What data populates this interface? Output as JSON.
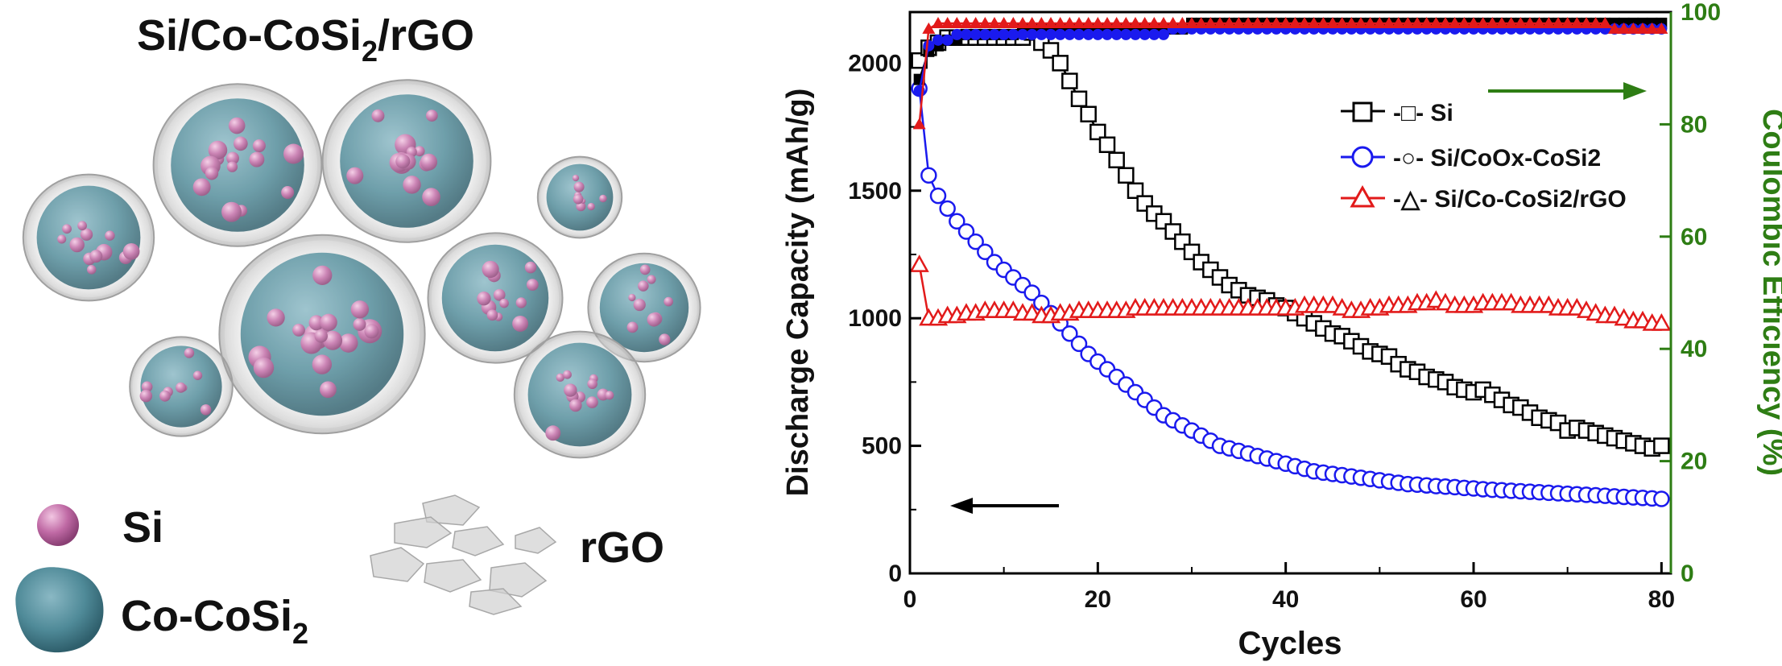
{
  "schematic": {
    "title_main": "Si/Co-CoSi",
    "title_sub": "2",
    "title_tail": "/rGO",
    "legend_si": "Si",
    "legend_cocosi_main": "Co-CoSi",
    "legend_cocosi_sub": "2",
    "legend_rgo": "rGO",
    "colors": {
      "si": "#c06aa5",
      "core": "#4f8a98",
      "shell": "#bdbdbd"
    }
  },
  "chart_data": {
    "type": "line",
    "xlabel": "Cycles",
    "ylabel": "Discharge Capacity (mAh/g)",
    "y2label": "Coulombic Efficiency (%)",
    "xlim": [
      0,
      81
    ],
    "ylim": [
      0,
      2200
    ],
    "y2lim": [
      0,
      100
    ],
    "xticks": [
      "0",
      "20",
      "40",
      "60",
      "80"
    ],
    "yticks": [
      "0",
      "500",
      "1000",
      "1500",
      "2000"
    ],
    "y2ticks": [
      "0",
      "20",
      "40",
      "60",
      "80",
      "100"
    ],
    "legend_position": "upper-right",
    "legend": [
      {
        "prefix": "-",
        "suffix": "- Si",
        "main": "",
        "sub": "",
        "tail": ""
      },
      {
        "prefix": "-",
        "suffix": "- Si/CoO",
        "main": "x",
        "sub": "",
        "tail": "-CoSi2"
      },
      {
        "prefix": "-",
        "suffix": "- Si/Co-CoSi2/rGO",
        "main": "",
        "sub": "",
        "tail": ""
      }
    ],
    "legend_text": [
      "-□- Si",
      "-○- Si/CoOx-CoSi2",
      "-△- Si/Co-CoSi2/rGO"
    ],
    "colors": {
      "si": "#000000",
      "coox": "#1a1aee",
      "rgo": "#e21a1a",
      "axis_right": "#2e7d14"
    },
    "series": [
      {
        "name": "Si",
        "axis": "left",
        "marker": "square",
        "x": [
          1,
          2,
          3,
          4,
          5,
          6,
          7,
          8,
          9,
          10,
          11,
          12,
          13,
          14,
          15,
          16,
          17,
          18,
          19,
          20,
          21,
          22,
          23,
          24,
          25,
          26,
          27,
          28,
          29,
          30,
          31,
          32,
          33,
          34,
          35,
          36,
          37,
          38,
          39,
          40,
          41,
          42,
          43,
          44,
          45,
          46,
          47,
          48,
          49,
          50,
          51,
          52,
          53,
          54,
          55,
          56,
          57,
          58,
          59,
          60,
          61,
          62,
          63,
          64,
          65,
          66,
          67,
          68,
          69,
          70,
          71,
          72,
          73,
          74,
          75,
          76,
          77,
          78,
          79,
          80
        ],
        "values": [
          2010,
          2060,
          2080,
          2100,
          2100,
          2100,
          2100,
          2100,
          2100,
          2100,
          2100,
          2100,
          2120,
          2080,
          2050,
          2000,
          1930,
          1860,
          1800,
          1730,
          1680,
          1620,
          1560,
          1500,
          1450,
          1410,
          1380,
          1340,
          1300,
          1260,
          1220,
          1190,
          1160,
          1130,
          1110,
          1090,
          1080,
          1070,
          1050,
          1040,
          1020,
          1000,
          980,
          960,
          940,
          930,
          910,
          890,
          870,
          860,
          850,
          820,
          800,
          790,
          770,
          760,
          750,
          730,
          720,
          710,
          720,
          700,
          680,
          660,
          650,
          630,
          610,
          600,
          590,
          560,
          570,
          560,
          550,
          540,
          530,
          520,
          510,
          500,
          490,
          500
        ]
      },
      {
        "name": "Si/CoOx-CoSi2",
        "axis": "left",
        "marker": "circle",
        "x": [
          1,
          2,
          3,
          4,
          5,
          6,
          7,
          8,
          9,
          10,
          11,
          12,
          13,
          14,
          15,
          16,
          17,
          18,
          19,
          20,
          21,
          22,
          23,
          24,
          25,
          26,
          27,
          28,
          29,
          30,
          31,
          32,
          33,
          34,
          35,
          36,
          37,
          38,
          39,
          40,
          41,
          42,
          43,
          44,
          45,
          46,
          47,
          48,
          49,
          50,
          51,
          52,
          53,
          54,
          55,
          56,
          57,
          58,
          59,
          60,
          61,
          62,
          63,
          64,
          65,
          66,
          67,
          68,
          69,
          70,
          71,
          72,
          73,
          74,
          75,
          76,
          77,
          78,
          79,
          80
        ],
        "values": [
          1900,
          1560,
          1480,
          1430,
          1380,
          1340,
          1300,
          1260,
          1220,
          1190,
          1160,
          1130,
          1100,
          1060,
          1020,
          980,
          940,
          900,
          860,
          830,
          800,
          770,
          740,
          710,
          680,
          650,
          620,
          600,
          580,
          560,
          540,
          520,
          500,
          490,
          480,
          470,
          460,
          450,
          440,
          430,
          420,
          410,
          400,
          395,
          390,
          385,
          380,
          375,
          370,
          365,
          360,
          355,
          350,
          348,
          345,
          342,
          340,
          338,
          335,
          333,
          330,
          328,
          326,
          324,
          322,
          320,
          318,
          316,
          314,
          312,
          310,
          308,
          306,
          304,
          302,
          300,
          298,
          296,
          294,
          292
        ]
      },
      {
        "name": "Si/Co-CoSi2/rGO",
        "axis": "left",
        "marker": "triangle",
        "x": [
          1,
          2,
          3,
          4,
          5,
          6,
          7,
          8,
          9,
          10,
          11,
          12,
          13,
          14,
          15,
          16,
          17,
          18,
          19,
          20,
          21,
          22,
          23,
          24,
          25,
          26,
          27,
          28,
          29,
          30,
          31,
          32,
          33,
          34,
          35,
          36,
          37,
          38,
          39,
          40,
          41,
          42,
          43,
          44,
          45,
          46,
          47,
          48,
          49,
          50,
          51,
          52,
          53,
          54,
          55,
          56,
          57,
          58,
          59,
          60,
          61,
          62,
          63,
          64,
          65,
          66,
          67,
          68,
          69,
          70,
          71,
          72,
          73,
          74,
          75,
          76,
          77,
          78,
          79,
          80
        ],
        "values": [
          1210,
          1000,
          1000,
          1010,
          1010,
          1020,
          1020,
          1030,
          1030,
          1030,
          1030,
          1020,
          1020,
          1010,
          1010,
          1020,
          1020,
          1030,
          1030,
          1030,
          1030,
          1030,
          1030,
          1040,
          1040,
          1040,
          1040,
          1040,
          1040,
          1040,
          1040,
          1040,
          1040,
          1040,
          1040,
          1040,
          1040,
          1040,
          1040,
          1040,
          1040,
          1050,
          1050,
          1050,
          1050,
          1040,
          1030,
          1030,
          1040,
          1040,
          1050,
          1050,
          1050,
          1060,
          1060,
          1070,
          1060,
          1050,
          1050,
          1050,
          1060,
          1060,
          1060,
          1060,
          1050,
          1050,
          1050,
          1050,
          1040,
          1040,
          1040,
          1030,
          1020,
          1010,
          1010,
          1000,
          990,
          990,
          980,
          980
        ]
      },
      {
        "name": "Si CE",
        "axis": "right",
        "marker": "square-filled",
        "x": [
          1,
          2,
          3,
          4,
          5,
          6,
          7,
          8,
          9,
          10,
          11,
          12,
          13,
          14,
          15,
          16,
          17,
          18,
          19,
          20,
          21,
          22,
          23,
          24,
          25,
          26,
          27,
          28,
          29,
          30,
          31,
          32,
          33,
          34,
          35,
          36,
          37,
          38,
          39,
          40,
          41,
          42,
          43,
          44,
          45,
          46,
          47,
          48,
          49,
          50,
          51,
          52,
          53,
          54,
          55,
          56,
          57,
          58,
          59,
          60,
          61,
          62,
          63,
          64,
          65,
          66,
          67,
          68,
          69,
          70,
          71,
          72,
          73,
          74,
          75,
          76,
          77,
          78,
          79,
          80
        ],
        "values": [
          88,
          93,
          94,
          95,
          95,
          96,
          96,
          96,
          96,
          96,
          96,
          97,
          97,
          97,
          97,
          97,
          97,
          97,
          97,
          97,
          97,
          97,
          97,
          97,
          97,
          97,
          97,
          97,
          97,
          98,
          98,
          98,
          98,
          98,
          98,
          98,
          98,
          98,
          98,
          98,
          98,
          98,
          98,
          98,
          98,
          98,
          98,
          98,
          98,
          98,
          98,
          98,
          98,
          98,
          98,
          98,
          98,
          98,
          98,
          98,
          98,
          98,
          98,
          98,
          98,
          98,
          98,
          98,
          98,
          98,
          98,
          98,
          98,
          98,
          98,
          98,
          98,
          98,
          98,
          98
        ]
      },
      {
        "name": "Si/CoOx-CoSi2 CE",
        "axis": "right",
        "marker": "circle-filled",
        "x": [
          1,
          2,
          3,
          4,
          5,
          6,
          7,
          8,
          9,
          10,
          11,
          12,
          13,
          14,
          15,
          16,
          17,
          18,
          19,
          20,
          21,
          22,
          23,
          24,
          25,
          26,
          27,
          28,
          29,
          30,
          31,
          32,
          33,
          34,
          35,
          36,
          37,
          38,
          39,
          40,
          41,
          42,
          43,
          44,
          45,
          46,
          47,
          48,
          49,
          50,
          51,
          52,
          53,
          54,
          55,
          56,
          57,
          58,
          59,
          60,
          61,
          62,
          63,
          64,
          65,
          66,
          67,
          68,
          69,
          70,
          71,
          72,
          73,
          74,
          75,
          76,
          77,
          78,
          79,
          80
        ],
        "values": [
          86,
          94,
          95,
          95,
          96,
          96,
          96,
          96,
          96,
          96,
          96,
          96,
          96,
          96,
          96,
          96,
          96,
          96,
          96,
          96,
          96,
          96,
          96,
          96,
          96,
          96,
          96,
          97,
          97,
          97,
          97,
          97,
          97,
          97,
          97,
          97,
          97,
          97,
          97,
          97,
          97,
          97,
          97,
          97,
          97,
          97,
          97,
          97,
          97,
          97,
          97,
          97,
          97,
          97,
          97,
          97,
          97,
          97,
          97,
          97,
          97,
          97,
          97,
          97,
          97,
          97,
          97,
          97,
          97,
          97,
          97,
          97,
          97,
          97,
          97,
          97,
          97,
          97,
          97,
          97
        ]
      },
      {
        "name": "Si/Co-CoSi2/rGO CE",
        "axis": "right",
        "marker": "triangle-filled",
        "x": [
          1,
          2,
          3,
          4,
          5,
          6,
          7,
          8,
          9,
          10,
          11,
          12,
          13,
          14,
          15,
          16,
          17,
          18,
          19,
          20,
          21,
          22,
          23,
          24,
          25,
          26,
          27,
          28,
          29,
          30,
          31,
          32,
          33,
          34,
          35,
          36,
          37,
          38,
          39,
          40,
          41,
          42,
          43,
          44,
          45,
          46,
          47,
          48,
          49,
          50,
          51,
          52,
          53,
          54,
          55,
          56,
          57,
          58,
          59,
          60,
          61,
          62,
          63,
          64,
          65,
          66,
          67,
          68,
          69,
          70,
          71,
          72,
          73,
          74,
          75,
          76,
          77,
          78,
          79,
          80
        ],
        "values": [
          80,
          97,
          98,
          98,
          98,
          98,
          98,
          98,
          98,
          98,
          98,
          98,
          98,
          98,
          98,
          98,
          98,
          98,
          98,
          98,
          98,
          98,
          98,
          98,
          98,
          98,
          98,
          98,
          98,
          98,
          98,
          98,
          98,
          98,
          98,
          98,
          98,
          98,
          98,
          98,
          98,
          98,
          98,
          98,
          98,
          98,
          98,
          98,
          98,
          98,
          98,
          98,
          98,
          98,
          98,
          98,
          98,
          98,
          98,
          98,
          98,
          98,
          98,
          98,
          98,
          98,
          98,
          98,
          98,
          98,
          98,
          98,
          98,
          98,
          97,
          97,
          97,
          97,
          97,
          97
        ]
      }
    ]
  }
}
